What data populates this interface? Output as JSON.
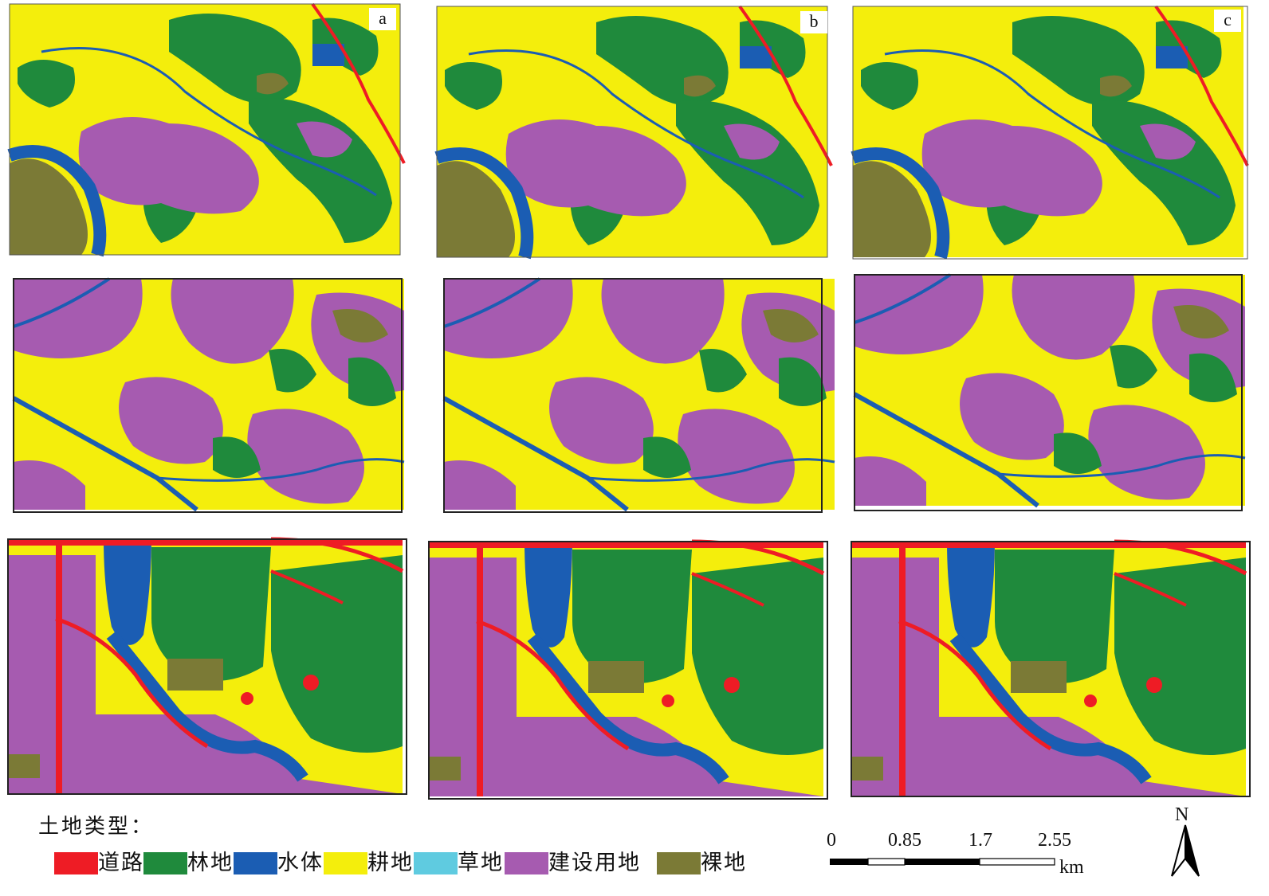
{
  "panel_labels": [
    "a",
    "b",
    "c"
  ],
  "legend": {
    "title": "土地类型：",
    "items": [
      {
        "label": "道路",
        "color": "#ee1c25",
        "icon": "red-swatch"
      },
      {
        "label": "林地",
        "color": "#1f8a3c",
        "icon": "green-swatch"
      },
      {
        "label": "水体",
        "color": "#1b5db3",
        "icon": "blue-swatch"
      },
      {
        "label": "耕地",
        "color": "#f4ee0c",
        "icon": "yellow-swatch"
      },
      {
        "label": "草地",
        "color": "#5fcbe0",
        "icon": "cyan-swatch"
      },
      {
        "label": "建设用地",
        "color": "#a65bb0",
        "icon": "purple-swatch"
      },
      {
        "label": "裸地",
        "color": "#7b7a36",
        "icon": "olive-swatch"
      }
    ]
  },
  "scale_bar": {
    "ticks": [
      "0",
      "0.85",
      "1.7",
      "2.55"
    ],
    "unit": "km"
  },
  "north_arrow": {
    "label": "N"
  },
  "colors": {
    "road": "#ee1c25",
    "forest": "#1f8a3c",
    "water": "#1b5db3",
    "farmland": "#f4ee0c",
    "grass": "#5fcbe0",
    "built": "#a65bb0",
    "bare": "#7b7a36"
  }
}
